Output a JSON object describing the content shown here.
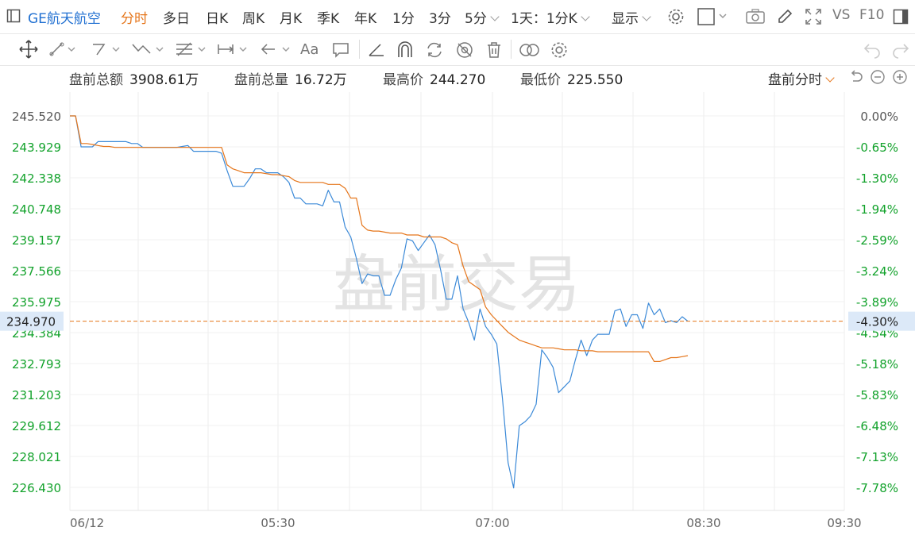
{
  "toolbar": {
    "symbol": "GE航天航空",
    "periods": [
      "分时",
      "多日",
      "日K",
      "周K",
      "月K",
      "季K",
      "年K",
      "1分",
      "3分",
      "5分"
    ],
    "active_period": "分时",
    "interval": "1天：1分K",
    "display": "显示",
    "vs": "VS",
    "f10": "F10"
  },
  "stats": {
    "amount_label": "盘前总额",
    "amount": "3908.61万",
    "volume_label": "盘前总量",
    "volume": "16.72万",
    "high_label": "最高价",
    "high": "244.270",
    "low_label": "最低价",
    "low": "225.550",
    "mode": "盘前分时"
  },
  "watermark": "盘前交易",
  "colors": {
    "up": "#e5322d",
    "down": "#12a22b",
    "price_line": "#3c8ad8",
    "avg_line": "#e5751a",
    "accent": "#e5751a",
    "current_label_bg": "#dce9f8"
  },
  "chart_data": {
    "type": "line",
    "x_labels": [
      "06/12",
      "05:30",
      "07:00",
      "08:30",
      "09:30"
    ],
    "y_left_ticks": [
      "245.520",
      "243.929",
      "242.338",
      "240.748",
      "239.157",
      "237.566",
      "235.975",
      "234.384",
      "232.793",
      "231.203",
      "229.612",
      "228.021",
      "226.430"
    ],
    "y_right_ticks": [
      "0.00%",
      "-0.65%",
      "-1.30%",
      "-1.94%",
      "-2.59%",
      "-3.24%",
      "-3.89%",
      "-4.54%",
      "-5.18%",
      "-5.83%",
      "-6.48%",
      "-7.13%",
      "-7.78%"
    ],
    "ylim": [
      226.43,
      245.52
    ],
    "current_price": "234.970",
    "current_pct": "-4.30%",
    "series": [
      {
        "values": [
          245.52,
          245.52,
          243.93,
          243.93,
          243.93,
          244.2,
          244.2,
          244.2,
          244.2,
          244.2,
          244.2,
          244.1,
          244.1,
          243.9,
          243.9,
          243.9,
          243.9,
          243.9,
          243.9,
          243.9,
          243.95,
          244.0,
          243.7,
          243.7,
          243.7,
          243.7,
          243.7,
          243.6,
          242.7,
          241.9,
          241.9,
          241.9,
          242.3,
          242.8,
          242.8,
          242.6,
          242.6,
          242.6,
          242.4,
          242.1,
          241.3,
          241.3,
          241.0,
          241.0,
          241.0,
          240.9,
          241.7,
          241.1,
          241.1,
          239.8,
          239.3,
          238.2,
          236.9,
          237.4,
          237.3,
          237.3,
          236.3,
          236.3,
          237.1,
          237.7,
          239.2,
          239.1,
          238.6,
          239.0,
          239.4,
          238.9,
          237.6,
          236.1,
          236.1,
          237.3,
          235.6,
          234.9,
          234.0,
          235.6,
          234.7,
          234.3,
          233.8,
          231.0,
          227.7,
          226.4,
          229.6,
          229.8,
          230.1,
          230.7,
          233.5,
          233.1,
          232.6,
          231.3,
          231.6,
          231.9,
          233.0,
          234.0,
          233.2,
          234.0,
          234.3,
          234.3,
          234.3,
          235.5,
          235.6,
          234.7,
          235.3,
          235.3,
          234.6,
          235.9,
          235.3,
          235.6,
          234.9,
          235.0,
          234.9,
          235.2,
          234.97
        ]
      },
      {
        "values": [
          245.52,
          245.52,
          244.1,
          244.1,
          244.05,
          244.0,
          243.95,
          243.95,
          243.9,
          243.9,
          243.9,
          243.9,
          243.9,
          243.9,
          243.9,
          243.9,
          243.9,
          243.9,
          243.9,
          243.9,
          243.9,
          243.9,
          243.9,
          243.9,
          243.9,
          243.9,
          243.9,
          243.9,
          243.0,
          242.8,
          242.7,
          242.6,
          242.6,
          242.6,
          242.6,
          242.55,
          242.5,
          242.5,
          242.45,
          242.4,
          242.2,
          242.1,
          242.1,
          242.1,
          242.1,
          242.1,
          242.0,
          242.0,
          242.0,
          241.8,
          241.3,
          241.3,
          239.9,
          239.65,
          239.6,
          239.6,
          239.55,
          239.5,
          239.5,
          239.5,
          239.4,
          239.4,
          239.4,
          239.3,
          239.3,
          239.3,
          239.3,
          239.2,
          239.0,
          238.9,
          237.8,
          237.0,
          236.8,
          236.6,
          235.7,
          235.3,
          235.0,
          234.7,
          234.4,
          234.2,
          234.0,
          233.9,
          233.8,
          233.7,
          233.6,
          233.6,
          233.6,
          233.55,
          233.5,
          233.5,
          233.5,
          233.45,
          233.45,
          233.45,
          233.4,
          233.4,
          233.4,
          233.4,
          233.4,
          233.4,
          233.4,
          233.4,
          233.4,
          233.4,
          232.9,
          232.9,
          233.0,
          233.1,
          233.1,
          233.15,
          233.2
        ]
      }
    ]
  }
}
